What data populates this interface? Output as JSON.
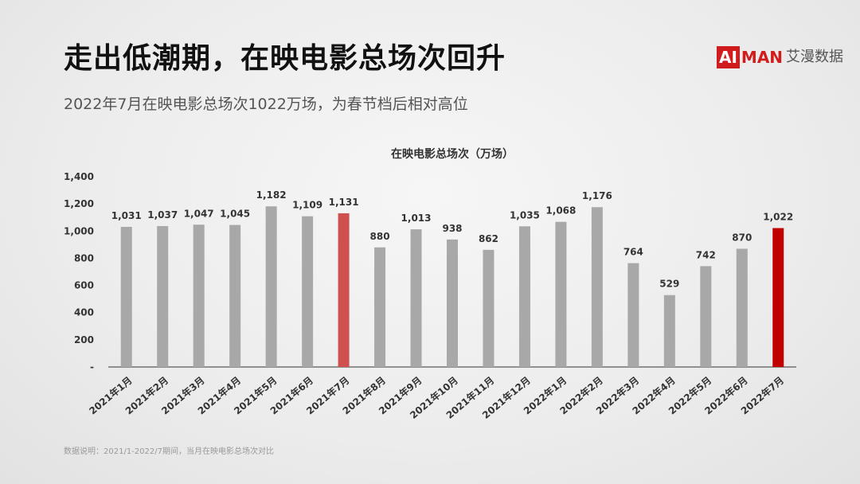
{
  "header": {
    "title": "走出低潮期，在映电影总场次回升",
    "subtitle": "2022年7月在映电影总场次1022万场，为春节档后相对高位"
  },
  "logo": {
    "ai": "AI",
    "man": "MAN",
    "cn": "艾漫数据"
  },
  "footnote": "数据说明：2021/1-2022/7期间，当月在映电影总场次对比",
  "colors": {
    "bar": "#a8a8a8",
    "highlight_2021": "#d0504f",
    "highlight_2022": "#c00000",
    "axis": "#333333"
  },
  "chart_data": {
    "type": "bar",
    "title": "在映电影总场次（万场）",
    "categories": [
      "2021年1月",
      "2021年2月",
      "2021年3月",
      "2021年4月",
      "2021年5月",
      "2021年6月",
      "2021年7月",
      "2021年8月",
      "2021年9月",
      "2021年10月",
      "2021年11月",
      "2021年12月",
      "2022年1月",
      "2022年2月",
      "2022年3月",
      "2022年4月",
      "2022年5月",
      "2022年6月",
      "2022年7月"
    ],
    "values": [
      1031,
      1037,
      1047,
      1045,
      1182,
      1109,
      1131,
      880,
      1013,
      938,
      862,
      1035,
      1068,
      1176,
      764,
      529,
      742,
      870,
      1022
    ],
    "data_labels": [
      "1,031",
      "1,037",
      "1,047",
      "1,045",
      "1,182",
      "1,109",
      "1,131",
      "880",
      "1,013",
      "938",
      "862",
      "1,035",
      "1,068",
      "1,176",
      "764",
      "529",
      "742",
      "870",
      "1,022"
    ],
    "highlight": {
      "2021年7月": "highlight_2021",
      "2022年7月": "highlight_2022"
    },
    "ylim": [
      0,
      1400
    ],
    "yticks": [
      0,
      200,
      400,
      600,
      800,
      1000,
      1200,
      1400
    ],
    "ytick_labels": [
      "-",
      "200",
      "400",
      "600",
      "800",
      "1,000",
      "1,200",
      "1,400"
    ],
    "grid": false,
    "xlabel": "",
    "ylabel": ""
  }
}
